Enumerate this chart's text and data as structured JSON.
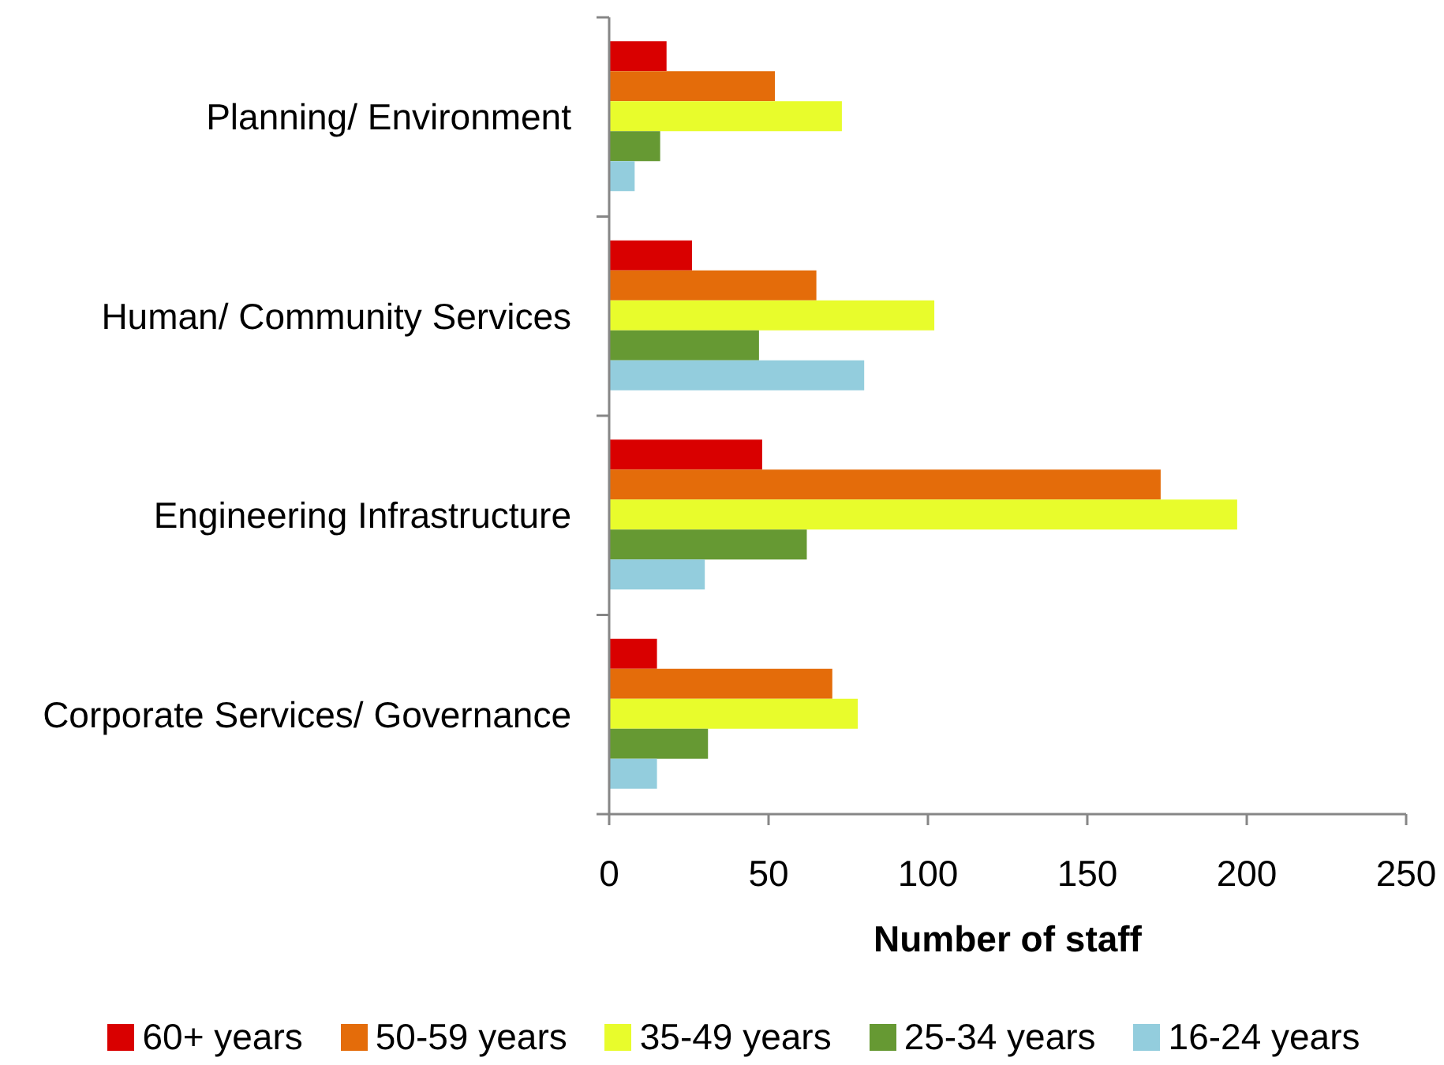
{
  "chart_data": {
    "type": "bar",
    "orientation": "horizontal",
    "categories": [
      "Planning/ Environment",
      "Human/ Community Services",
      "Engineering Infrastructure",
      "Corporate Services/ Governance"
    ],
    "series": [
      {
        "name": "60+ years",
        "color": "#d90000",
        "values": [
          18,
          26,
          48,
          15
        ]
      },
      {
        "name": "50-59 years",
        "color": "#e46c0a",
        "values": [
          52,
          65,
          173,
          70
        ]
      },
      {
        "name": "35-49 years",
        "color": "#e8fc2c",
        "values": [
          73,
          102,
          197,
          78
        ]
      },
      {
        "name": "25-34 years",
        "color": "#669933",
        "values": [
          16,
          47,
          62,
          31
        ]
      },
      {
        "name": "16-24 years",
        "color": "#93cddd",
        "values": [
          8,
          80,
          30,
          15
        ]
      }
    ],
    "xlim": [
      0,
      250
    ],
    "xticks": [
      0,
      50,
      100,
      150,
      200,
      250
    ],
    "xlabel": "Number of staff",
    "legend": "bottom"
  }
}
